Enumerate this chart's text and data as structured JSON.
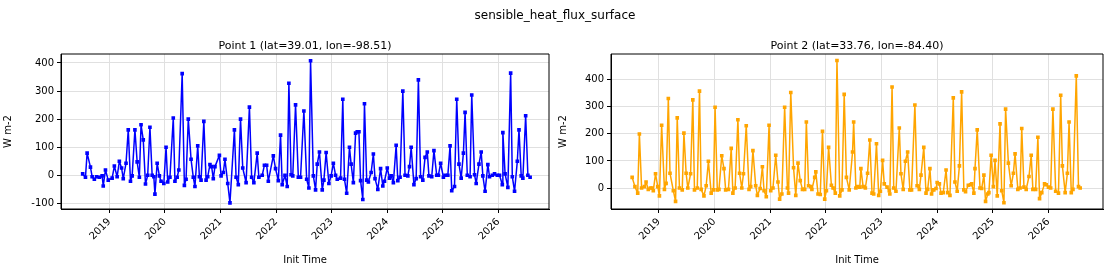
{
  "chart_data": [
    {
      "type": "line",
      "title": "Point 1 (lat=39.01, lon=-98.51)",
      "xlabel": "Init Time",
      "ylabel": "W m-2",
      "annotations": [
        "sensible_heat_flux_surface"
      ],
      "color": "#0000ff",
      "marker": "square",
      "grid": true,
      "xlim": [
        2018.13,
        2026.91
      ],
      "xticks": [
        2019,
        2020,
        2021,
        2022,
        2023,
        2024,
        2025,
        2026
      ],
      "ylim": [
        -120,
        432
      ],
      "yticks": [
        -100,
        0,
        100,
        200,
        300,
        400
      ],
      "x": [
        2018.52,
        2018.57,
        2018.6,
        2018.66,
        2018.69,
        2018.73,
        2018.77,
        2018.82,
        2018.87,
        2018.89,
        2018.93,
        2018.98,
        2019.05,
        2019.09,
        2019.14,
        2019.18,
        2019.22,
        2019.25,
        2019.3,
        2019.34,
        2019.38,
        2019.41,
        2019.46,
        2019.5,
        2019.54,
        2019.57,
        2019.61,
        2019.65,
        2019.69,
        2019.73,
        2019.77,
        2019.8,
        2019.82,
        2019.86,
        2019.9,
        2019.93,
        2019.98,
        2020.02,
        2020.05,
        2020.09,
        2020.15,
        2020.18,
        2020.22,
        2020.25,
        2020.31,
        2020.35,
        2020.38,
        2020.42,
        2020.47,
        2020.51,
        2020.54,
        2020.59,
        2020.62,
        2020.65,
        2020.7,
        2020.74,
        2020.77,
        2020.81,
        2020.84,
        2020.87,
        2020.9,
        2020.98,
        2021.01,
        2021.05,
        2021.08,
        2021.13,
        2021.17,
        2021.25,
        2021.28,
        2021.32,
        2021.36,
        2021.4,
        2021.46,
        2021.52,
        2021.56,
        2021.6,
        2021.66,
        2021.69,
        2021.75,
        2021.79,
        2021.83,
        2021.86,
        2021.95,
        2021.99,
        2022.04,
        2022.08,
        2022.11,
        2022.16,
        2022.2,
        2022.23,
        2022.27,
        2022.3,
        2022.35,
        2022.4,
        2022.44,
        2022.5,
        2022.55,
        2022.59,
        2022.62,
        2022.67,
        2022.71,
        2022.74,
        2022.78,
        2022.83,
        2022.86,
        2022.9,
        2022.95,
        2022.99,
        2023.03,
        2023.07,
        2023.1,
        2023.16,
        2023.2,
        2023.23,
        2023.27,
        2023.32,
        2023.35,
        2023.39,
        2023.43,
        2023.46,
        2023.49,
        2023.52,
        2023.56,
        2023.59,
        2023.63,
        2023.66,
        2023.71,
        2023.75,
        2023.78,
        2023.83,
        2023.88,
        2023.92,
        2023.95,
        2024.0,
        2024.04,
        2024.07,
        2024.11,
        2024.16,
        2024.19,
        2024.23,
        2024.28,
        2024.32,
        2024.37,
        2024.4,
        2024.43,
        2024.48,
        2024.52,
        2024.56,
        2024.6,
        2024.64,
        2024.68,
        2024.72,
        2024.75,
        2024.8,
        2024.84,
        2024.89,
        2024.92,
        2024.96,
        2025.01,
        2025.04,
        2025.09,
        2025.13,
        2025.16,
        2025.21,
        2025.25,
        2025.29,
        2025.33,
        2025.37,
        2025.4,
        2025.44,
        2025.49,
        2025.52,
        2025.57,
        2025.6,
        2025.65,
        2025.69,
        2025.72,
        2025.76,
        2025.81,
        2025.84,
        2025.89,
        2025.93,
        2025.98,
        2026.02,
        2026.07,
        2026.08,
        2026.12,
        2026.17,
        2026.22,
        2026.25,
        2026.29,
        2026.34,
        2026.37,
        2026.41,
        2026.44,
        2026.49,
        2026.53,
        2026.57
      ],
      "values": [
        5,
        -7,
        79,
        29,
        -5,
        -14,
        -5,
        -7,
        -2,
        -38,
        19,
        -17,
        -10,
        33,
        -5,
        50,
        26,
        -12,
        43,
        162,
        -21,
        -2,
        162,
        48,
        -7,
        180,
        126,
        -31,
        0,
        171,
        0,
        -5,
        -67,
        43,
        -2,
        -21,
        -29,
        100,
        -24,
        -7,
        204,
        -21,
        -7,
        19,
        362,
        -36,
        -14,
        200,
        57,
        -7,
        -40,
        105,
        -5,
        -17,
        192,
        -17,
        -5,
        38,
        31,
        -12,
        31,
        71,
        -2,
        10,
        57,
        -29,
        -98,
        162,
        -7,
        -33,
        200,
        26,
        -26,
        243,
        -7,
        -26,
        79,
        -7,
        0,
        36,
        36,
        -21,
        69,
        24,
        -19,
        143,
        -33,
        0,
        -40,
        328,
        2,
        -2,
        251,
        -7,
        -7,
        229,
        -14,
        -45,
        408,
        -2,
        -52,
        40,
        83,
        -52,
        -17,
        81,
        -29,
        -2,
        43,
        0,
        -14,
        -10,
        271,
        -14,
        -64,
        100,
        40,
        -26,
        150,
        155,
        155,
        -19,
        -86,
        255,
        -17,
        -24,
        10,
        76,
        -12,
        -50,
        24,
        -38,
        -21,
        26,
        -10,
        -2,
        -26,
        107,
        -19,
        -7,
        300,
        0,
        -2,
        31,
        100,
        -33,
        -12,
        340,
        -5,
        -17,
        64,
        83,
        -2,
        -5,
        88,
        0,
        0,
        43,
        -7,
        0,
        0,
        105,
        -55,
        -40,
        271,
        40,
        -10,
        79,
        224,
        0,
        -5,
        286,
        2,
        -29,
        40,
        83,
        -2,
        -57,
        38,
        -5,
        0,
        5,
        0,
        0,
        -33,
        152,
        5,
        -43,
        364,
        -5,
        -57,
        50,
        162,
        -2,
        -10,
        212,
        0,
        -7
      ]
    },
    {
      "type": "line",
      "title": "Point 2 (lat=33.76, lon=-84.40)",
      "xlabel": "Init Time",
      "ylabel": "W m-2",
      "color": "#ffa500",
      "marker": "square",
      "grid": true,
      "xlim": [
        2018.14,
        2026.98
      ],
      "xticks": [
        2019,
        2020,
        2021,
        2022,
        2023,
        2024,
        2025,
        2026
      ],
      "ylim": [
        -76,
        492
      ],
      "yticks": [
        0,
        100,
        200,
        300,
        400
      ],
      "x": [
        2018.52,
        2018.57,
        2018.62,
        2018.65,
        2018.69,
        2018.74,
        2018.77,
        2018.81,
        2018.85,
        2018.88,
        2018.9,
        2018.94,
        2018.98,
        2019.01,
        2019.05,
        2019.1,
        2019.13,
        2019.17,
        2019.2,
        2019.26,
        2019.3,
        2019.33,
        2019.37,
        2019.42,
        2019.45,
        2019.49,
        2019.52,
        2019.57,
        2019.61,
        2019.64,
        2019.69,
        2019.73,
        2019.76,
        2019.81,
        2019.85,
        2019.89,
        2019.94,
        2019.98,
        2020.01,
        2020.05,
        2020.08,
        2020.13,
        2020.17,
        2020.2,
        2020.25,
        2020.3,
        2020.33,
        2020.37,
        2020.42,
        2020.45,
        2020.49,
        2020.52,
        2020.57,
        2020.62,
        2020.65,
        2020.69,
        2020.74,
        2020.77,
        2020.82,
        2020.86,
        2020.89,
        2020.93,
        2020.98,
        2021.01,
        2021.05,
        2021.1,
        2021.14,
        2021.17,
        2021.21,
        2021.26,
        2021.31,
        2021.33,
        2021.37,
        2021.42,
        2021.46,
        2021.5,
        2021.54,
        2021.58,
        2021.62,
        2021.65,
        2021.69,
        2021.73,
        2021.75,
        2021.8,
        2021.82,
        2021.86,
        2021.9,
        2021.94,
        2021.98,
        2022.01,
        2022.05,
        2022.1,
        2022.13,
        2022.17,
        2022.2,
        2022.25,
        2022.29,
        2022.33,
        2022.37,
        2022.42,
        2022.48,
        2022.5,
        2022.54,
        2022.57,
        2022.61,
        2022.63,
        2022.67,
        2022.71,
        2022.75,
        2022.79,
        2022.83,
        2022.86,
        2022.91,
        2022.95,
        2022.98,
        2023.02,
        2023.05,
        2023.1,
        2023.14,
        2023.15,
        2023.19,
        2023.22,
        2023.26,
        2023.32,
        2023.35,
        2023.39,
        2023.43,
        2023.47,
        2023.51,
        2023.54,
        2023.6,
        2023.64,
        2023.68,
        2023.71,
        2023.76,
        2023.8,
        2023.83,
        2023.87,
        2023.9,
        2023.94,
        2023.98,
        2024.0,
        2024.04,
        2024.07,
        2024.11,
        2024.16,
        2024.19,
        2024.23,
        2024.29,
        2024.32,
        2024.36,
        2024.4,
        2024.44,
        2024.48,
        2024.51,
        2024.56,
        2024.6,
        2024.62,
        2024.66,
        2024.68,
        2024.72,
        2024.77,
        2024.8,
        2024.84,
        2024.87,
        2024.91,
        2024.93,
        2024.97,
        2025.01,
        2025.04,
        2025.08,
        2025.13,
        2025.16,
        2025.2,
        2025.23,
        2025.28,
        2025.33,
        2025.37,
        2025.4,
        2025.45,
        2025.49,
        2025.52,
        2025.56,
        2025.6,
        2025.65,
        2025.69,
        2025.72,
        2025.77,
        2025.81,
        2025.84,
        2025.88,
        2025.93,
        2025.96,
        2026.0,
        2026.04,
        2026.08,
        2026.13,
        2026.18,
        2026.22,
        2026.25,
        2026.3,
        2026.34,
        2026.37,
        2026.41,
        2026.44,
        2026.5,
        2026.54,
        2026.57
      ],
      "values": [
        40,
        6,
        -18,
        199,
        1,
        6,
        23,
        -4,
        1,
        1,
        -9,
        53,
        6,
        -28,
        231,
        -4,
        18,
        329,
        55,
        -9,
        -48,
        258,
        1,
        -6,
        202,
        55,
        1,
        53,
        324,
        -6,
        1,
        356,
        -4,
        -28,
        9,
        99,
        -18,
        -6,
        297,
        -6,
        -4,
        119,
        72,
        -6,
        -4,
        146,
        -18,
        1,
        251,
        55,
        1,
        53,
        229,
        -4,
        6,
        138,
        9,
        -26,
        -1,
        79,
        -9,
        -31,
        231,
        -9,
        1,
        121,
        23,
        -40,
        -21,
        297,
        1,
        -18,
        351,
        75,
        -26,
        92,
        28,
        -4,
        -4,
        243,
        9,
        6,
        -4,
        40,
        60,
        -21,
        -23,
        209,
        -40,
        -9,
        150,
        11,
        1,
        -18,
        468,
        -28,
        -6,
        344,
        40,
        -6,
        133,
        243,
        1,
        6,
        4,
        72,
        6,
        1,
        55,
        177,
        -18,
        -21,
        163,
        -26,
        -11,
        102,
        16,
        4,
        -9,
        -21,
        371,
        1,
        -11,
        221,
        53,
        -4,
        99,
        133,
        -6,
        -6,
        305,
        9,
        -4,
        48,
        150,
        -18,
        -4,
        72,
        -21,
        -6,
        -1,
        21,
        16,
        -18,
        -16,
        67,
        -16,
        -26,
        331,
        23,
        -11,
        82,
        353,
        -6,
        -13,
        11,
        13,
        16,
        -18,
        72,
        214,
        1,
        -1,
        48,
        -48,
        -21,
        -16,
        121,
        6,
        102,
        -28,
        236,
        -9,
        -53,
        290,
        92,
        9,
        55,
        126,
        -4,
        1,
        219,
        4,
        -4,
        43,
        121,
        -4,
        -4,
        187,
        -38,
        -16,
        16,
        13,
        4,
        1,
        290,
        -11,
        -18,
        341,
        82,
        -16,
        55,
        243,
        -16,
        -4,
        412,
        6,
        1
      ]
    }
  ]
}
